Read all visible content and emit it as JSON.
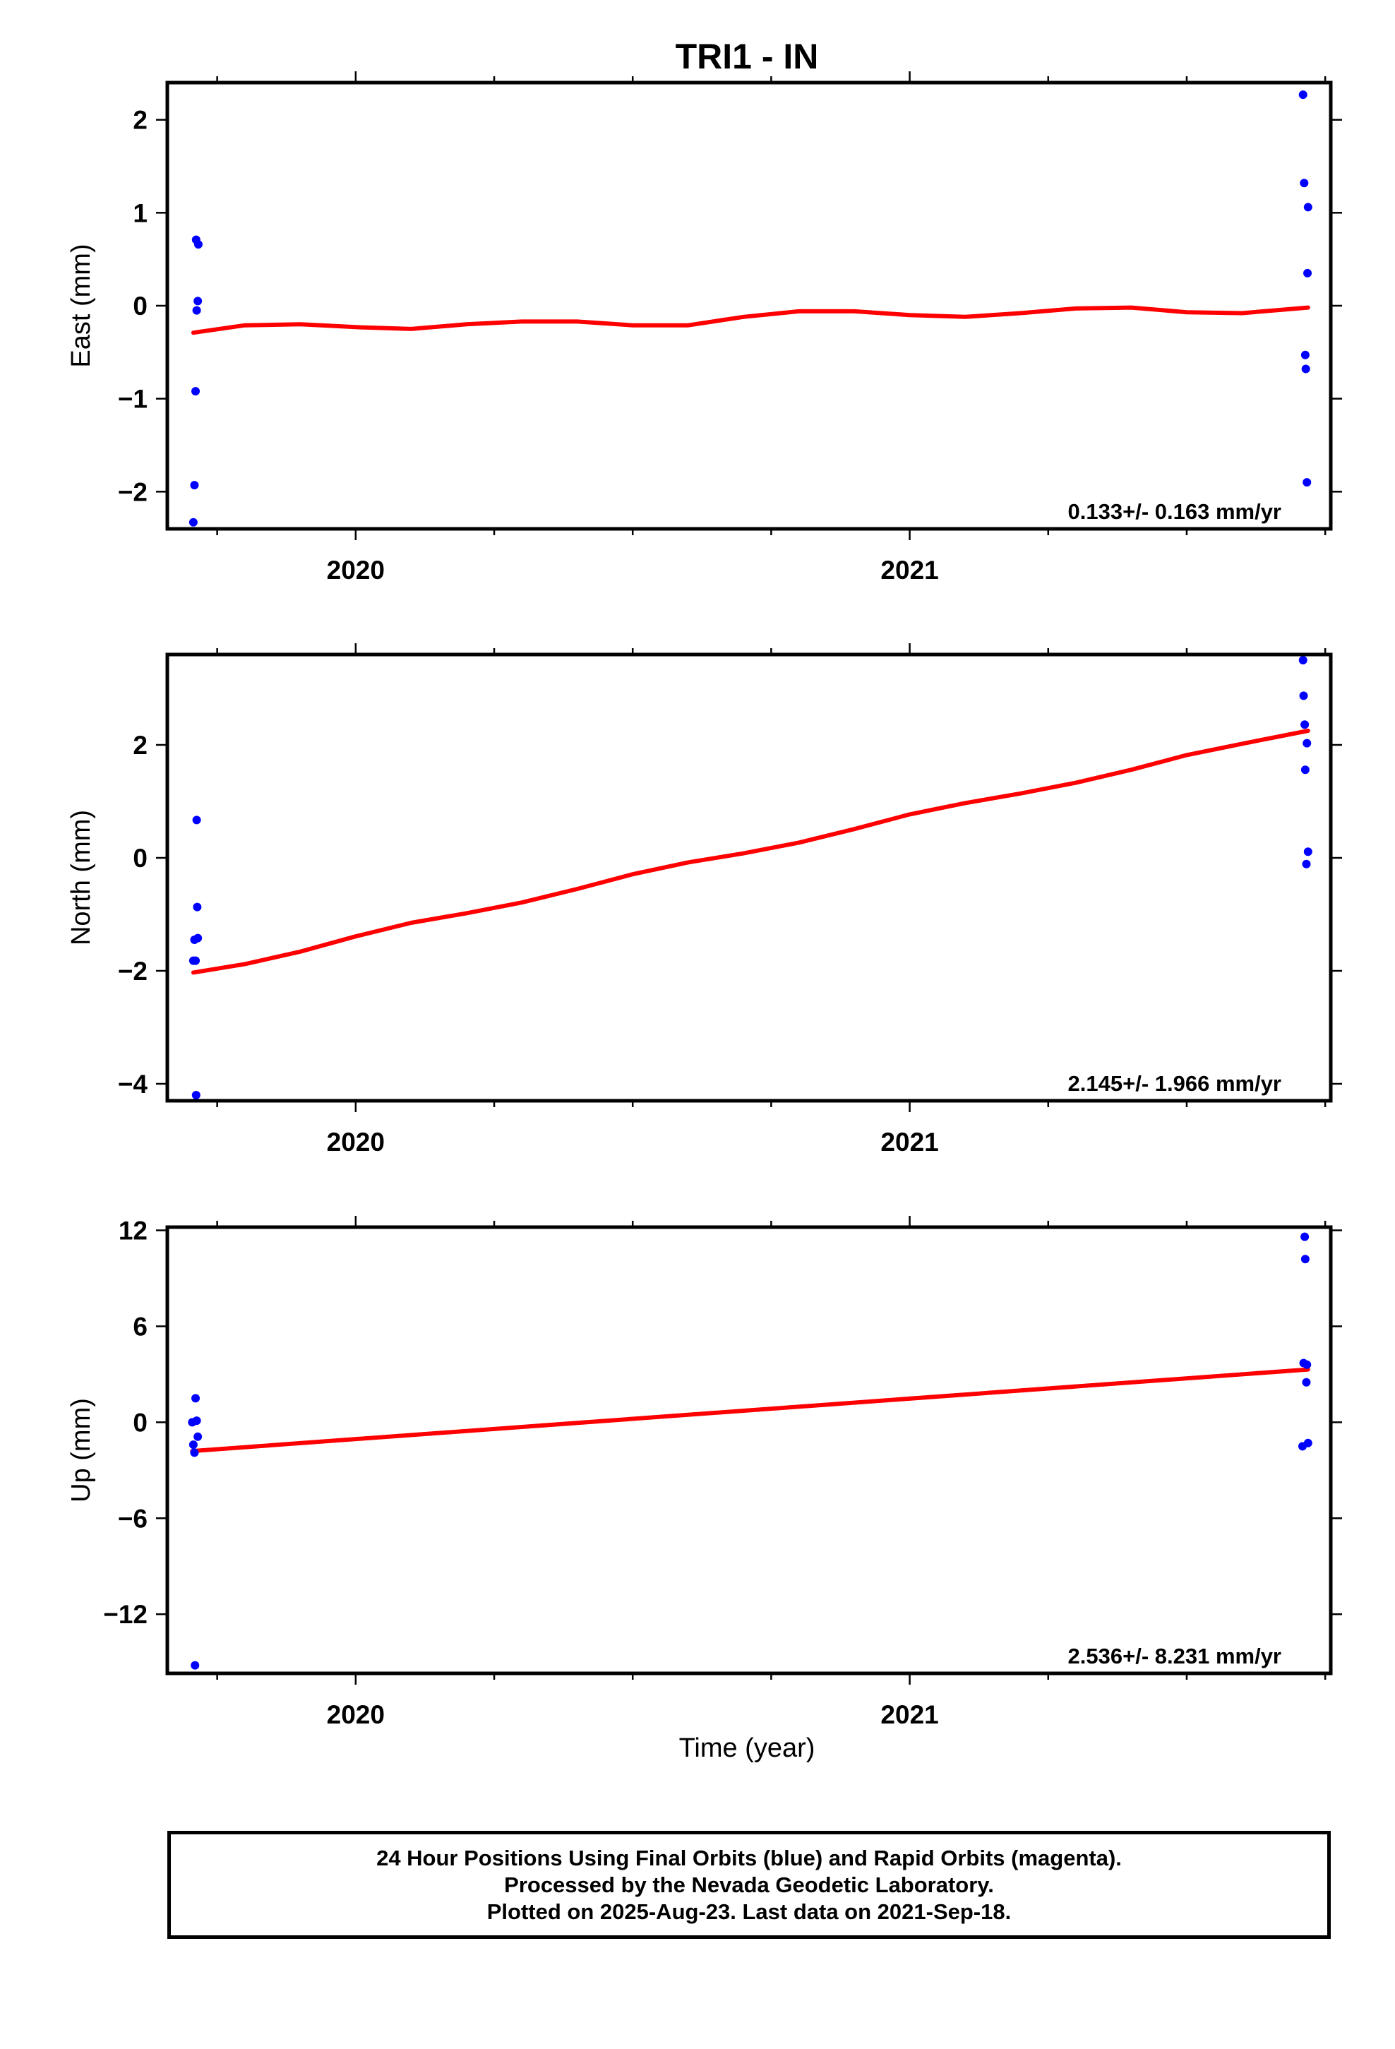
{
  "title": "TRI1 - IN",
  "xlabel": "Time (year)",
  "footer": {
    "line1": "24 Hour Positions Using Final Orbits (blue) and Rapid Orbits (magenta).",
    "line2": "Processed by the Nevada Geodetic Laboratory.",
    "line3": "Plotted on 2025-Aug-23. Last data on 2021-Sep-18."
  },
  "colors": {
    "points": "#0000ff",
    "fit": "#ff0000",
    "axes": "#000000"
  },
  "chart_data": [
    {
      "type": "scatter",
      "component": "East",
      "ylabel": "East (mm)",
      "xlim": [
        2019.66,
        2021.76
      ],
      "ylim": [
        -2.4,
        2.4
      ],
      "xticks": [
        2020,
        2021
      ],
      "yticks": [
        2,
        1,
        0,
        -1,
        -2
      ],
      "rate_text": "0.133+/- 0.163 mm/yr",
      "points_x": [
        2019.707,
        2019.709,
        2019.711,
        2019.712,
        2019.713,
        2019.715,
        2019.716,
        2021.71,
        2021.712,
        2021.714,
        2021.715,
        2021.717,
        2021.718,
        2021.719
      ],
      "points_y": [
        -2.33,
        -1.93,
        -0.92,
        0.71,
        -0.05,
        0.05,
        0.66,
        2.27,
        1.32,
        -0.53,
        -0.68,
        -1.9,
        0.35,
        1.06
      ],
      "fit": {
        "x": [
          2019.707,
          2019.8,
          2019.9,
          2020.0,
          2020.1,
          2020.2,
          2020.3,
          2020.4,
          2020.5,
          2020.6,
          2020.7,
          2020.8,
          2020.9,
          2021.0,
          2021.1,
          2021.2,
          2021.3,
          2021.4,
          2021.5,
          2021.6,
          2021.719
        ],
        "y": [
          -0.29,
          -0.21,
          -0.2,
          -0.23,
          -0.25,
          -0.2,
          -0.17,
          -0.17,
          -0.21,
          -0.21,
          -0.12,
          -0.06,
          -0.06,
          -0.1,
          -0.12,
          -0.08,
          -0.03,
          -0.02,
          -0.07,
          -0.08,
          -0.02
        ]
      }
    },
    {
      "type": "scatter",
      "component": "North",
      "ylabel": "North (mm)",
      "xlim": [
        2019.66,
        2021.76
      ],
      "ylim": [
        -4.3,
        3.6
      ],
      "xticks": [
        2020,
        2021
      ],
      "yticks": [
        2,
        0,
        -2,
        -4
      ],
      "rate_text": "2.145+/- 1.966 mm/yr",
      "points_x": [
        2019.707,
        2019.709,
        2019.711,
        2019.712,
        2019.713,
        2019.714,
        2019.715,
        2021.71,
        2021.711,
        2021.713,
        2021.714,
        2021.716,
        2021.717,
        2021.719
      ],
      "points_y": [
        -1.82,
        -1.45,
        -1.82,
        -4.2,
        0.67,
        -0.87,
        -1.42,
        3.5,
        2.87,
        2.36,
        1.56,
        -0.11,
        2.03,
        0.11
      ],
      "fit": {
        "x": [
          2019.707,
          2019.8,
          2019.9,
          2020.0,
          2020.1,
          2020.2,
          2020.3,
          2020.4,
          2020.5,
          2020.6,
          2020.7,
          2020.8,
          2020.9,
          2021.0,
          2021.1,
          2021.2,
          2021.3,
          2021.4,
          2021.5,
          2021.6,
          2021.719
        ],
        "y": [
          -2.03,
          -1.88,
          -1.66,
          -1.39,
          -1.15,
          -0.98,
          -0.79,
          -0.55,
          -0.29,
          -0.08,
          0.08,
          0.27,
          0.51,
          0.77,
          0.97,
          1.14,
          1.33,
          1.56,
          1.82,
          2.02,
          2.25
        ]
      }
    },
    {
      "type": "scatter",
      "component": "Up",
      "ylabel": "Up (mm)",
      "xlim": [
        2019.66,
        2021.76
      ],
      "ylim": [
        -15.7,
        12.2
      ],
      "xticks": [
        2020,
        2021
      ],
      "yticks": [
        12,
        6,
        0,
        -6,
        -12
      ],
      "rate_text": "2.536+/- 8.231 mm/yr",
      "points_x": [
        2019.705,
        2019.707,
        2019.709,
        2019.71,
        2019.711,
        2019.713,
        2019.715,
        2021.709,
        2021.711,
        2021.713,
        2021.714,
        2021.716,
        2021.717,
        2021.719
      ],
      "points_y": [
        0.0,
        -1.4,
        -1.9,
        -15.2,
        1.5,
        0.1,
        -0.9,
        -1.5,
        3.7,
        11.6,
        10.2,
        2.5,
        3.6,
        -1.3
      ],
      "fit": {
        "x": [
          2019.705,
          2021.719
        ],
        "y": [
          -1.8,
          3.3
        ]
      }
    }
  ]
}
